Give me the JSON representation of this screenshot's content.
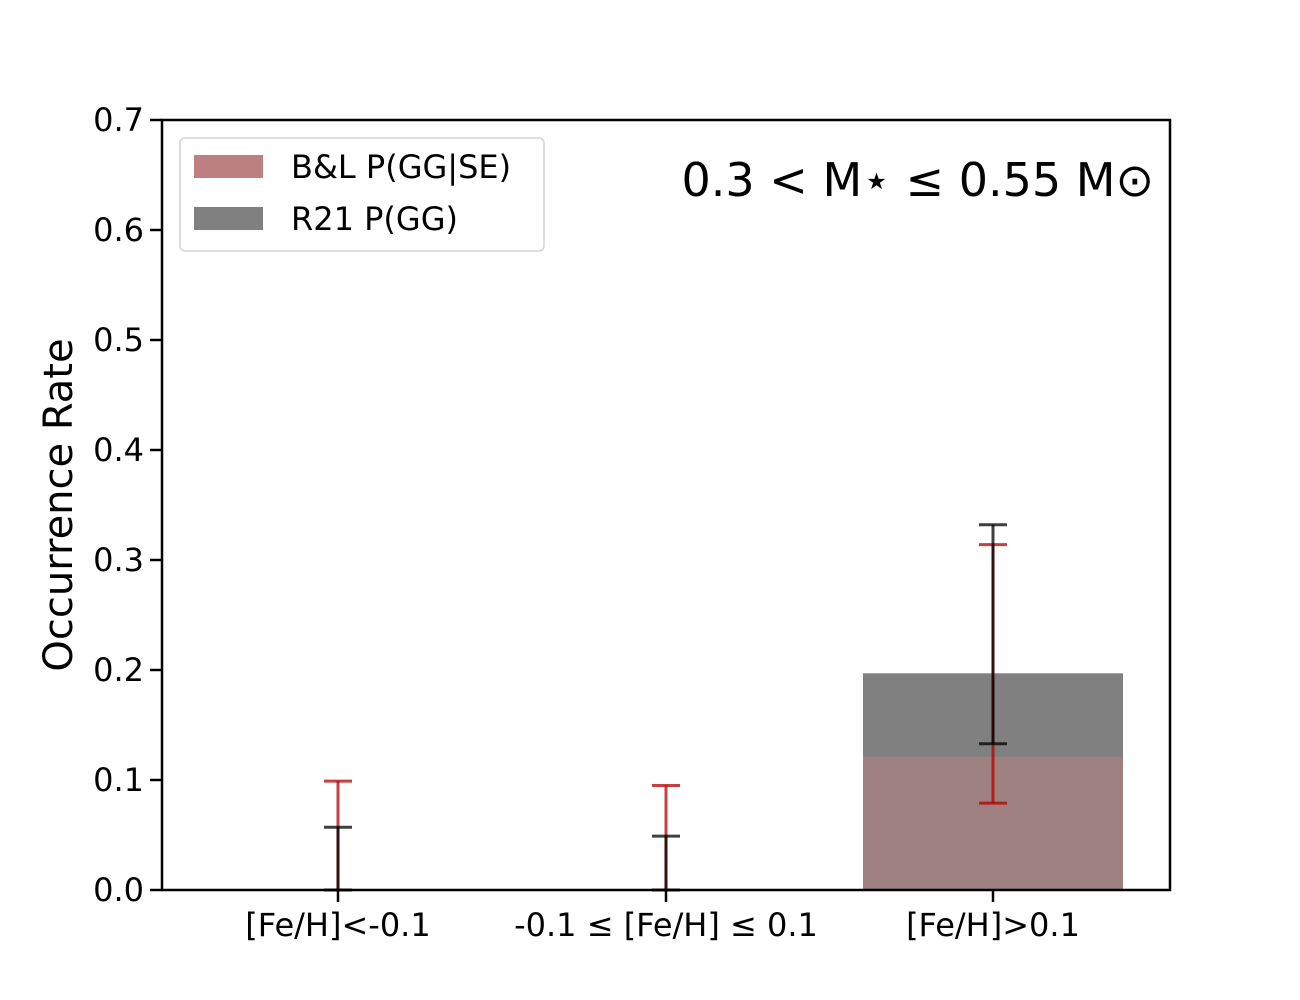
{
  "chart_data": {
    "type": "bar",
    "categories": [
      "[Fe/H]<-0.1",
      "-0.1 ≤ [Fe/H] ≤ 0.1",
      "[Fe/H]>0.1"
    ],
    "series": [
      {
        "name": "R21 P(GG)",
        "color": "#808080",
        "values": [
          0.0,
          0.0,
          0.197
        ],
        "err_low": [
          0.0,
          0.0,
          0.133
        ],
        "err_high": [
          0.057,
          0.049,
          0.332
        ],
        "errbar_color": "#000000"
      },
      {
        "name": "B&L P(GG|SE)",
        "color": "#bc8080",
        "values": [
          0.0,
          0.0,
          0.121
        ],
        "err_low": [
          0.0,
          0.0,
          0.079
        ],
        "err_high": [
          0.099,
          0.095,
          0.314
        ],
        "errbar_color": "#b30000"
      }
    ],
    "ylabel": "Occurrence Rate",
    "xlabel": "",
    "ylim": [
      0,
      0.7
    ],
    "yticks": [
      0.0,
      0.1,
      0.2,
      0.3,
      0.4,
      0.5,
      0.6,
      0.7
    ],
    "ytick_labels": [
      "0.0",
      "0.1",
      "0.2",
      "0.3",
      "0.4",
      "0.5",
      "0.6",
      "0.7"
    ],
    "annotation": "0.3 < M⋆ ≤ 0.55 M⊙",
    "legend_position": "upper-left",
    "legend_order": [
      "B&L P(GG|SE)",
      "R21 P(GG)"
    ],
    "grid": false
  }
}
